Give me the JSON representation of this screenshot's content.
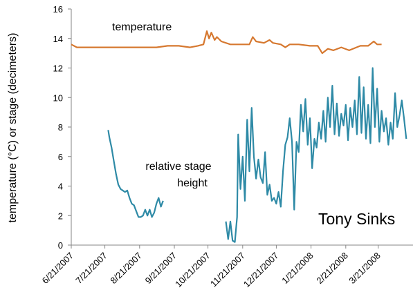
{
  "chart_data": {
    "type": "line",
    "title": "",
    "xlabel": "",
    "ylabel": "temperature (°C) or stage (decimeters)",
    "ylim": [
      0,
      16
    ],
    "xlim": [
      "2007-06-21",
      "2008-04-21"
    ],
    "yticks": [
      "0",
      "2",
      "4",
      "6",
      "8",
      "10",
      "12",
      "14",
      "16"
    ],
    "xticks": [
      {
        "date": "2007-06-21",
        "label": "6/21/2007"
      },
      {
        "date": "2007-07-21",
        "label": "7/21/2007"
      },
      {
        "date": "2007-08-21",
        "label": "8/21/2007"
      },
      {
        "date": "2007-09-21",
        "label": "9/21/2007"
      },
      {
        "date": "2007-10-21",
        "label": "10/21/2007"
      },
      {
        "date": "2007-11-21",
        "label": "11/21/2007"
      },
      {
        "date": "2007-12-21",
        "label": "12/21/2007"
      },
      {
        "date": "2008-01-21",
        "label": "1/21/2008"
      },
      {
        "date": "2008-02-21",
        "label": "2/21/2008"
      },
      {
        "date": "2008-03-21",
        "label": "3/21/2008"
      }
    ],
    "grid": false,
    "legend": "none",
    "annotations": {
      "temperature": "temperature",
      "stage_line1": "relative stage",
      "stage_line2": "height",
      "site": "Tony Sinks"
    },
    "series": [
      {
        "name": "temperature",
        "color": "#d6782f",
        "points": [
          [
            "2007-06-21",
            13.6
          ],
          [
            "2007-06-26",
            13.4
          ],
          [
            "2007-07-05",
            13.4
          ],
          [
            "2007-07-15",
            13.4
          ],
          [
            "2007-07-25",
            13.4
          ],
          [
            "2007-08-05",
            13.4
          ],
          [
            "2007-08-15",
            13.4
          ],
          [
            "2007-08-25",
            13.4
          ],
          [
            "2007-09-05",
            13.4
          ],
          [
            "2007-09-15",
            13.5
          ],
          [
            "2007-09-25",
            13.5
          ],
          [
            "2007-10-05",
            13.4
          ],
          [
            "2007-10-12",
            13.5
          ],
          [
            "2007-10-17",
            13.6
          ],
          [
            "2007-10-20",
            14.5
          ],
          [
            "2007-10-22",
            14.0
          ],
          [
            "2007-10-24",
            14.4
          ],
          [
            "2007-10-27",
            13.9
          ],
          [
            "2007-10-29",
            14.1
          ],
          [
            "2007-11-02",
            13.8
          ],
          [
            "2007-11-10",
            13.6
          ],
          [
            "2007-11-20",
            13.6
          ],
          [
            "2007-11-27",
            13.6
          ],
          [
            "2007-11-30",
            14.1
          ],
          [
            "2007-12-03",
            13.8
          ],
          [
            "2007-12-10",
            13.7
          ],
          [
            "2007-12-15",
            13.9
          ],
          [
            "2007-12-18",
            13.7
          ],
          [
            "2007-12-25",
            13.6
          ],
          [
            "2007-12-29",
            13.4
          ],
          [
            "2008-01-02",
            13.6
          ],
          [
            "2008-01-10",
            13.6
          ],
          [
            "2008-01-20",
            13.5
          ],
          [
            "2008-01-27",
            13.5
          ],
          [
            "2008-01-31",
            13.0
          ],
          [
            "2008-02-05",
            13.3
          ],
          [
            "2008-02-10",
            13.2
          ],
          [
            "2008-02-17",
            13.4
          ],
          [
            "2008-02-24",
            13.2
          ],
          [
            "2008-03-05",
            13.5
          ],
          [
            "2008-03-12",
            13.5
          ],
          [
            "2008-03-17",
            13.8
          ],
          [
            "2008-03-20",
            13.6
          ],
          [
            "2008-03-24",
            13.6
          ]
        ]
      },
      {
        "name": "relative stage height",
        "color": "#2e8aa6",
        "segments": [
          [
            [
              "2007-07-24",
              7.8
            ],
            [
              "2007-07-25",
              7.3
            ],
            [
              "2007-07-27",
              6.6
            ],
            [
              "2007-07-29",
              5.7
            ],
            [
              "2007-07-31",
              4.8
            ],
            [
              "2007-08-02",
              4.1
            ],
            [
              "2007-08-04",
              3.8
            ],
            [
              "2007-08-06",
              3.7
            ],
            [
              "2007-08-08",
              3.6
            ],
            [
              "2007-08-10",
              3.7
            ],
            [
              "2007-08-12",
              3.2
            ],
            [
              "2007-08-14",
              2.8
            ],
            [
              "2007-08-16",
              2.7
            ],
            [
              "2007-08-18",
              2.3
            ],
            [
              "2007-08-20",
              1.9
            ],
            [
              "2007-08-22",
              1.9
            ],
            [
              "2007-08-24",
              2.0
            ],
            [
              "2007-08-26",
              2.4
            ],
            [
              "2007-08-28",
              2.0
            ],
            [
              "2007-08-30",
              2.4
            ],
            [
              "2007-09-01",
              1.9
            ],
            [
              "2007-09-03",
              2.2
            ],
            [
              "2007-09-05",
              2.8
            ],
            [
              "2007-09-07",
              3.2
            ],
            [
              "2007-09-09",
              2.6
            ],
            [
              "2007-09-11",
              3.0
            ]
          ],
          [
            [
              "2007-11-06",
              1.6
            ],
            [
              "2007-11-08",
              0.4
            ],
            [
              "2007-11-10",
              1.6
            ],
            [
              "2007-11-12",
              0.3
            ],
            [
              "2007-11-14",
              0.2
            ],
            [
              "2007-11-16",
              1.9
            ],
            [
              "2007-11-17",
              7.5
            ],
            [
              "2007-11-19",
              3.8
            ],
            [
              "2007-11-21",
              6.0
            ],
            [
              "2007-11-23",
              3.0
            ],
            [
              "2007-11-25",
              8.5
            ],
            [
              "2007-11-27",
              5.0
            ],
            [
              "2007-11-29",
              9.3
            ],
            [
              "2007-12-01",
              6.0
            ],
            [
              "2007-12-03",
              4.5
            ],
            [
              "2007-12-05",
              5.8
            ],
            [
              "2007-12-07",
              4.6
            ],
            [
              "2007-12-09",
              4.2
            ],
            [
              "2007-12-11",
              6.3
            ],
            [
              "2007-12-13",
              3.4
            ],
            [
              "2007-12-15",
              4.1
            ],
            [
              "2007-12-17",
              3.0
            ],
            [
              "2007-12-19",
              3.2
            ],
            [
              "2007-12-21",
              2.8
            ],
            [
              "2007-12-23",
              3.6
            ],
            [
              "2007-12-25",
              2.6
            ],
            [
              "2007-12-27",
              5.0
            ],
            [
              "2007-12-29",
              6.8
            ],
            [
              "2007-12-31",
              7.3
            ],
            [
              "2008-01-02",
              8.6
            ],
            [
              "2008-01-04",
              7.0
            ],
            [
              "2008-01-06",
              2.4
            ],
            [
              "2008-01-08",
              7.0
            ],
            [
              "2008-01-10",
              6.3
            ],
            [
              "2008-01-12",
              9.5
            ],
            [
              "2008-01-14",
              7.7
            ],
            [
              "2008-01-16",
              9.9
            ],
            [
              "2008-01-18",
              6.8
            ],
            [
              "2008-01-20",
              8.6
            ],
            [
              "2008-01-22",
              5.2
            ],
            [
              "2008-01-24",
              7.2
            ],
            [
              "2008-01-26",
              6.6
            ],
            [
              "2008-01-28",
              8.3
            ],
            [
              "2008-01-30",
              7.2
            ],
            [
              "2008-02-01",
              9.1
            ],
            [
              "2008-02-03",
              7.0
            ],
            [
              "2008-02-05",
              10.0
            ],
            [
              "2008-02-07",
              8.0
            ],
            [
              "2008-02-09",
              10.8
            ],
            [
              "2008-02-11",
              7.5
            ],
            [
              "2008-02-13",
              9.6
            ],
            [
              "2008-02-15",
              7.4
            ],
            [
              "2008-02-17",
              8.9
            ],
            [
              "2008-02-19",
              8.1
            ],
            [
              "2008-02-21",
              9.5
            ],
            [
              "2008-02-23",
              7.1
            ],
            [
              "2008-02-25",
              9.3
            ],
            [
              "2008-02-27",
              8.0
            ],
            [
              "2008-02-29",
              9.8
            ],
            [
              "2008-03-02",
              7.5
            ],
            [
              "2008-03-04",
              11.4
            ],
            [
              "2008-03-06",
              7.6
            ],
            [
              "2008-03-08",
              10.7
            ],
            [
              "2008-03-10",
              7.2
            ],
            [
              "2008-03-12",
              9.5
            ],
            [
              "2008-03-14",
              6.9
            ],
            [
              "2008-03-16",
              12.0
            ],
            [
              "2008-03-18",
              8.0
            ],
            [
              "2008-03-20",
              10.6
            ],
            [
              "2008-03-22",
              7.0
            ],
            [
              "2008-03-24",
              9.1
            ],
            [
              "2008-03-26",
              7.7
            ],
            [
              "2008-03-28",
              8.6
            ],
            [
              "2008-03-30",
              6.8
            ],
            [
              "2008-04-01",
              8.3
            ],
            [
              "2008-04-03",
              7.2
            ],
            [
              "2008-04-05",
              10.3
            ],
            [
              "2008-04-07",
              8.0
            ],
            [
              "2008-04-09",
              8.8
            ],
            [
              "2008-04-11",
              9.8
            ],
            [
              "2008-04-13",
              8.6
            ],
            [
              "2008-04-15",
              7.2
            ]
          ]
        ]
      }
    ]
  }
}
